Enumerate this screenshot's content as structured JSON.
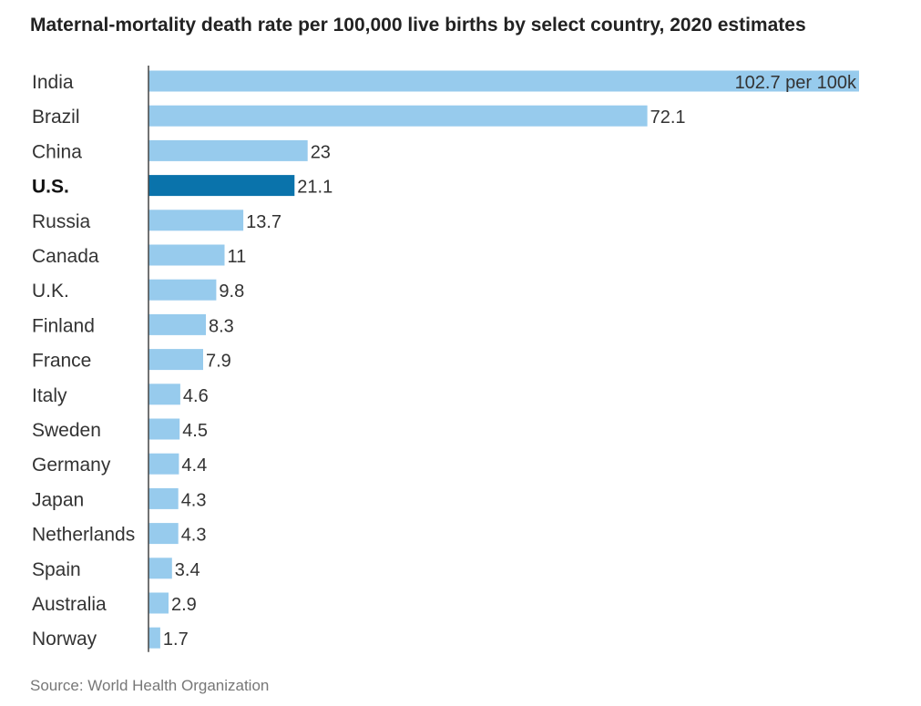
{
  "chart_data": {
    "type": "bar",
    "orientation": "horizontal",
    "title": "Maternal-mortality death rate per 100,000 live births by select country, 2020 estimates",
    "source": "Source: World Health Organization",
    "xlabel": "",
    "ylabel": "",
    "xlim": [
      0,
      102.7
    ],
    "grid": false,
    "categories": [
      "India",
      "Brazil",
      "China",
      "U.S.",
      "Russia",
      "Canada",
      "U.K.",
      "Finland",
      "France",
      "Italy",
      "Sweden",
      "Germany",
      "Japan",
      "Netherlands",
      "Spain",
      "Australia",
      "Norway"
    ],
    "values": [
      102.7,
      72.1,
      23,
      21.1,
      13.7,
      11,
      9.8,
      8.3,
      7.9,
      4.6,
      4.5,
      4.4,
      4.3,
      4.3,
      3.4,
      2.9,
      1.7
    ],
    "value_labels": [
      "102.7 per 100k",
      "72.1",
      "23",
      "21.1",
      "13.7",
      "11",
      "9.8",
      "8.3",
      "7.9",
      "4.6",
      "4.5",
      "4.4",
      "4.3",
      "4.3",
      "3.4",
      "2.9",
      "1.7"
    ],
    "highlight": "U.S.",
    "colors": {
      "bar": "#97cbed",
      "highlight": "#0a73ab",
      "axis": "#444444"
    }
  }
}
